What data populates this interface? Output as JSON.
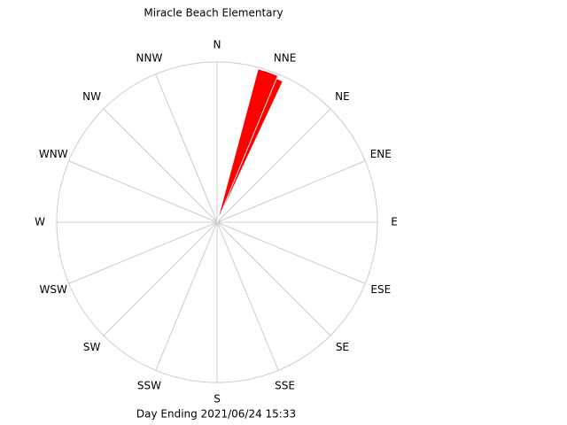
{
  "chart_data": {
    "type": "windrose",
    "title": "Miracle Beach Elementary",
    "footer": "Day Ending 2021/06/24 15:33",
    "thetaticks": [
      {
        "value": 0,
        "label": "N"
      },
      {
        "value": 22.5,
        "label": "NNE"
      },
      {
        "value": 45,
        "label": "NE"
      },
      {
        "value": 67.5,
        "label": "ENE"
      },
      {
        "value": 90,
        "label": "E"
      },
      {
        "value": 112.5,
        "label": "ESE"
      },
      {
        "value": 135,
        "label": "SE"
      },
      {
        "value": 157.5,
        "label": "SSE"
      },
      {
        "value": 180,
        "label": "S"
      },
      {
        "value": 202.5,
        "label": "SSW"
      },
      {
        "value": 225,
        "label": "SW"
      },
      {
        "value": 247.5,
        "label": "WSW"
      },
      {
        "value": 270,
        "label": "W"
      },
      {
        "value": 292.5,
        "label": "WNW"
      },
      {
        "value": 315,
        "label": "NW"
      },
      {
        "value": 337.5,
        "label": "NNW"
      }
    ],
    "theta_start": [
      15,
      22.5
    ],
    "theta_end": [
      22.5,
      25
    ],
    "values": [
      0.99,
      0.97
    ],
    "color": "#ff0000",
    "rlim": [
      0,
      1
    ],
    "grid": true
  }
}
